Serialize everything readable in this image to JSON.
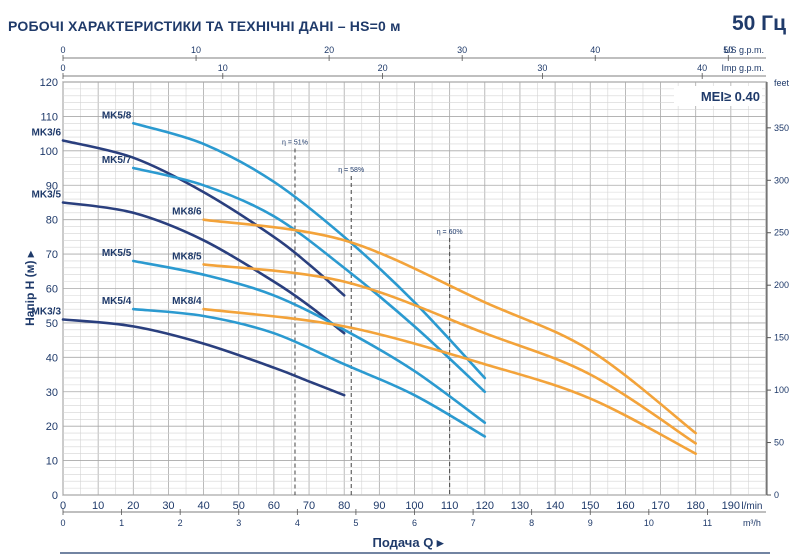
{
  "header": {
    "title": "РОБОЧІ ХАРАКТЕРИСТИКИ ТА ТЕХНІЧНІ ДАНІ  –  HS=0 м",
    "frequency": "50 Гц"
  },
  "chart_data": {
    "type": "line",
    "mei_note": "MEI≥ 0.40",
    "ylabel": "Напір H  (м)",
    "xlabel": "Подача Q",
    "grid": true,
    "xlim": [
      0,
      200
    ],
    "ylim": [
      0,
      120
    ],
    "x_primary": {
      "unit": "l/min",
      "ticks": [
        0,
        10,
        20,
        30,
        40,
        50,
        60,
        70,
        80,
        90,
        100,
        110,
        120,
        130,
        140,
        150,
        160,
        170,
        180,
        190
      ]
    },
    "x_m3h": {
      "unit": "m³/h",
      "ticks": [
        0,
        1,
        2,
        3,
        4,
        5,
        6,
        7,
        8,
        9,
        10,
        11
      ]
    },
    "x_us": {
      "unit": "US g.p.m.",
      "ticks": [
        0,
        10,
        20,
        30,
        40,
        50
      ]
    },
    "x_imp": {
      "unit": "Imp g.p.m.",
      "ticks": [
        0,
        10,
        20,
        30,
        40
      ]
    },
    "y_ticks": [
      0,
      10,
      20,
      30,
      40,
      50,
      60,
      70,
      80,
      90,
      100,
      110,
      120
    ],
    "y_feet": {
      "unit": "feet",
      "ticks": [
        0,
        50,
        100,
        150,
        200,
        250,
        300,
        350
      ]
    },
    "colors": {
      "mk3": "#2a3f7e",
      "mk5": "#2b9ad0",
      "mk8": "#f3a33a",
      "text": "#1f3a6a",
      "grid": "#bfbfbf"
    },
    "series": [
      {
        "name": "MK3/3",
        "group": "mk3",
        "x": [
          0,
          20,
          40,
          60,
          70,
          80
        ],
        "y": [
          51,
          49,
          44,
          37,
          33,
          29
        ]
      },
      {
        "name": "MK3/5",
        "group": "mk3",
        "x": [
          0,
          20,
          40,
          60,
          70,
          80
        ],
        "y": [
          85,
          82,
          74,
          62,
          55,
          47
        ]
      },
      {
        "name": "MK3/6",
        "group": "mk3",
        "x": [
          0,
          20,
          40,
          60,
          70,
          80
        ],
        "y": [
          103,
          98,
          88,
          75,
          67,
          58
        ]
      },
      {
        "name": "MK5/4",
        "group": "mk5",
        "x": [
          20,
          40,
          60,
          80,
          100,
          120
        ],
        "y": [
          54,
          52,
          47,
          38,
          29,
          17
        ]
      },
      {
        "name": "MK5/5",
        "group": "mk5",
        "x": [
          20,
          40,
          60,
          80,
          100,
          120
        ],
        "y": [
          68,
          64,
          58,
          48,
          36,
          21
        ]
      },
      {
        "name": "MK5/7",
        "group": "mk5",
        "x": [
          20,
          40,
          60,
          80,
          100,
          120
        ],
        "y": [
          95,
          90,
          81,
          66,
          49,
          30
        ]
      },
      {
        "name": "MK5/8",
        "group": "mk5",
        "x": [
          20,
          40,
          60,
          80,
          100,
          120
        ],
        "y": [
          108,
          102,
          91,
          75,
          56,
          34
        ]
      },
      {
        "name": "MK8/4",
        "group": "mk8",
        "x": [
          40,
          80,
          120,
          150,
          180
        ],
        "y": [
          54,
          49,
          38,
          28,
          12
        ]
      },
      {
        "name": "MK8/5",
        "group": "mk8",
        "x": [
          40,
          80,
          120,
          150,
          180
        ],
        "y": [
          67,
          62,
          47,
          35,
          15
        ]
      },
      {
        "name": "MK8/6",
        "group": "mk8",
        "x": [
          40,
          80,
          120,
          150,
          180
        ],
        "y": [
          80,
          74,
          56,
          42,
          18
        ]
      }
    ],
    "efficiency_lines": [
      {
        "label": "η = 51%",
        "x": 66,
        "y_top": 103
      },
      {
        "label": "η = 58%",
        "x": 82,
        "y_top": 95
      },
      {
        "label": "η = 60%",
        "x": 110,
        "y_top": 77
      }
    ]
  }
}
